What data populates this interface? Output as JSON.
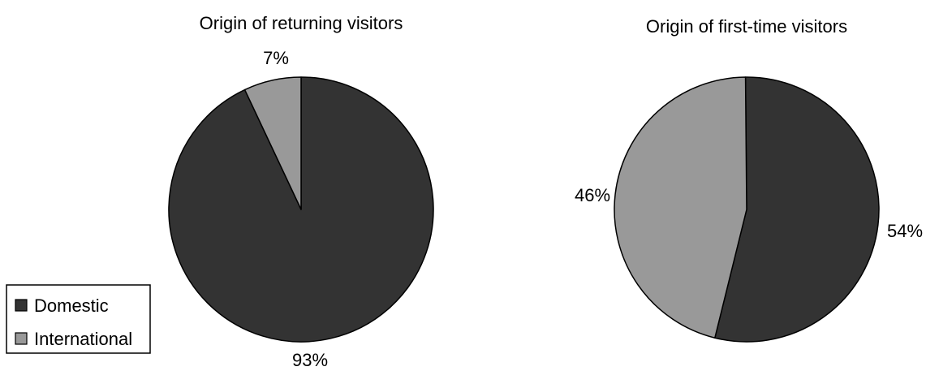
{
  "colors": {
    "domestic": "#333333",
    "international": "#999999",
    "outline": "#000000"
  },
  "legend": {
    "placement": "bottom-left",
    "items": [
      {
        "label": "Domestic",
        "color": "#333333"
      },
      {
        "label": "International",
        "color": "#999999"
      }
    ]
  },
  "chart_data": [
    {
      "type": "pie",
      "title": "Origin of returning visitors",
      "categories": [
        "Domestic",
        "International"
      ],
      "values": [
        93,
        7
      ],
      "labels": [
        "93%",
        "7%"
      ]
    },
    {
      "type": "pie",
      "title": "Origin of first-time visitors",
      "categories": [
        "Domestic",
        "International"
      ],
      "values": [
        54,
        46
      ],
      "labels": [
        "54%",
        "46%"
      ]
    }
  ]
}
